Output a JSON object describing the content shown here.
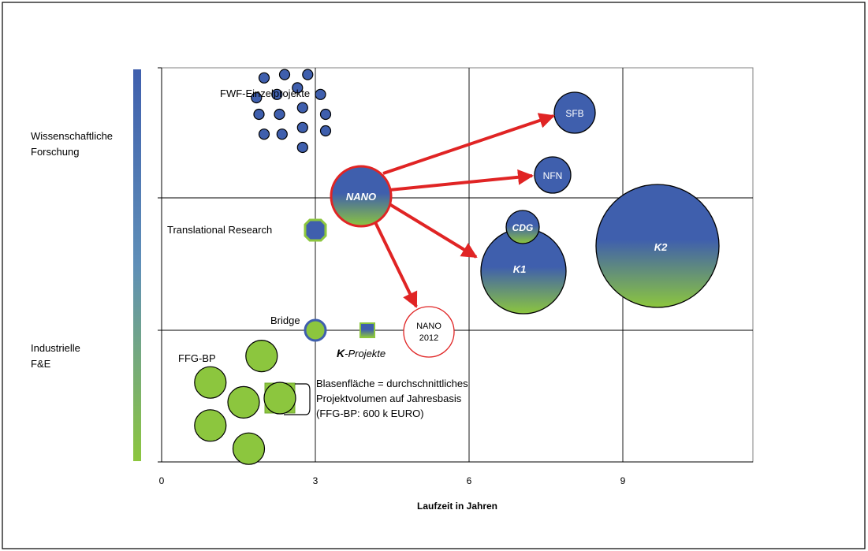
{
  "chart_data": {
    "type": "bubble",
    "xlabel": "Laufzeit in Jahren",
    "x_ticks": [
      "0",
      "3",
      "6",
      "9"
    ],
    "xlim": [
      0,
      11.6
    ],
    "y_axis_labels": {
      "top": [
        "Wissenschaftliche",
        "Forschung"
      ],
      "bottom": [
        "Industrielle",
        "F&E"
      ]
    },
    "colors": {
      "blue": "#3f5fad",
      "green": "#8cc63e",
      "arrow": "#e02424",
      "border": "#000000"
    },
    "groups": [
      {
        "label": "FWF-Einzelprojekte",
        "fill": "blue",
        "points": [
          {
            "x": 2.0,
            "y": 5.8
          },
          {
            "x": 2.4,
            "y": 5.85
          },
          {
            "x": 2.85,
            "y": 5.85
          },
          {
            "x": 1.85,
            "y": 5.5
          },
          {
            "x": 2.25,
            "y": 5.55
          },
          {
            "x": 2.65,
            "y": 5.65
          },
          {
            "x": 3.1,
            "y": 5.55
          },
          {
            "x": 1.9,
            "y": 5.25
          },
          {
            "x": 2.3,
            "y": 5.25
          },
          {
            "x": 2.75,
            "y": 5.35
          },
          {
            "x": 3.2,
            "y": 5.25
          },
          {
            "x": 2.0,
            "y": 4.95
          },
          {
            "x": 2.35,
            "y": 4.95
          },
          {
            "x": 2.75,
            "y": 5.05
          },
          {
            "x": 3.2,
            "y": 5.0
          },
          {
            "x": 2.75,
            "y": 4.75
          }
        ]
      },
      {
        "label": "Translational Research",
        "fill": "blue-green",
        "points": [
          {
            "x": 3.0,
            "y": 3.55
          }
        ]
      },
      {
        "label": "Bridge",
        "fill": "green-blue",
        "points": [
          {
            "x": 3.0,
            "y": 2.0
          }
        ]
      },
      {
        "label": "K-Projekte",
        "label_bold_prefix": "K",
        "label_rest": "-Projekte",
        "fill": "gradient",
        "points": [
          {
            "x": 4.0,
            "y": 2.0
          }
        ]
      },
      {
        "label": "FFG-BP",
        "fill": "green",
        "points": [
          {
            "x": 1.95,
            "y": 1.6
          },
          {
            "x": 0.95,
            "y": 1.2
          },
          {
            "x": 1.6,
            "y": 0.9
          },
          {
            "x": 2.3,
            "y": 0.95
          },
          {
            "x": 0.95,
            "y": 0.55
          },
          {
            "x": 1.7,
            "y": 0.2
          }
        ]
      }
    ],
    "bubbles": [
      {
        "label": "NANO",
        "x": 3.85,
        "y": 4.4,
        "fill": "gradient",
        "bold": true
      },
      {
        "label": "SFB",
        "x": 8.1,
        "y": 6.3,
        "fill": "blue"
      },
      {
        "label": "NFN",
        "x": 7.55,
        "y": 5.25,
        "fill": "blue"
      },
      {
        "label": "CDG",
        "x": 7.0,
        "y": 3.75,
        "fill": "gradient",
        "bold": true
      },
      {
        "label": "K1",
        "x": 7.0,
        "y": 2.95,
        "fill": "gradient",
        "bold": true
      },
      {
        "label": "K2",
        "x": 9.7,
        "y": 3.3,
        "fill": "gradient",
        "bold": true
      }
    ],
    "nano2012": {
      "label_line1": "NANO",
      "label_line2": "2012",
      "x": 5.15,
      "y": 1.75
    },
    "arrows": [
      {
        "from": "NANO",
        "to": "SFB"
      },
      {
        "from": "NANO",
        "to": "NFN"
      },
      {
        "from": "NANO",
        "to": "K1"
      },
      {
        "from": "NANO",
        "to": "NANO 2012"
      }
    ],
    "annotation": {
      "lines": [
        "Blasenfläche = durchschnittliches",
        "Projektvolumen auf Jahresbasis",
        "(FFG-BP: 600 k EURO)"
      ]
    }
  }
}
